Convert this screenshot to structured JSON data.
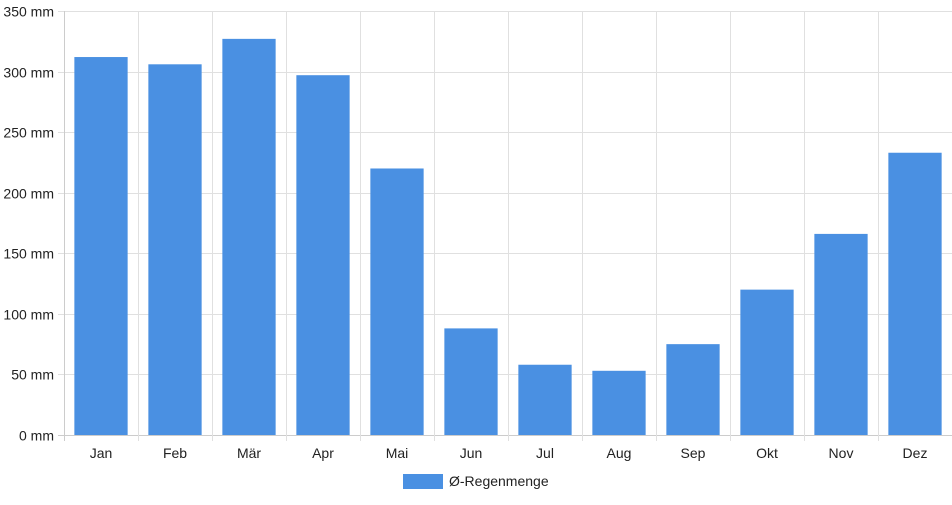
{
  "colors": {
    "bar": "#4a90e2",
    "grid": "#e0e0e0",
    "axis": "#cccccc"
  },
  "chart_data": {
    "type": "bar",
    "categories": [
      "Jan",
      "Feb",
      "Mär",
      "Apr",
      "Mai",
      "Jun",
      "Jul",
      "Aug",
      "Sep",
      "Okt",
      "Nov",
      "Dez"
    ],
    "series": [
      {
        "name": "Ø-Regenmenge",
        "values": [
          312,
          306,
          327,
          297,
          220,
          88,
          58,
          53,
          75,
          120,
          166,
          233
        ]
      }
    ],
    "y_unit": "mm",
    "y_ticks": [
      "0 mm",
      "50 mm",
      "100 mm",
      "150 mm",
      "200 mm",
      "250 mm",
      "300 mm",
      "350 mm"
    ],
    "ylim": [
      0,
      350
    ],
    "grid": true,
    "legend": "bottom-center"
  }
}
